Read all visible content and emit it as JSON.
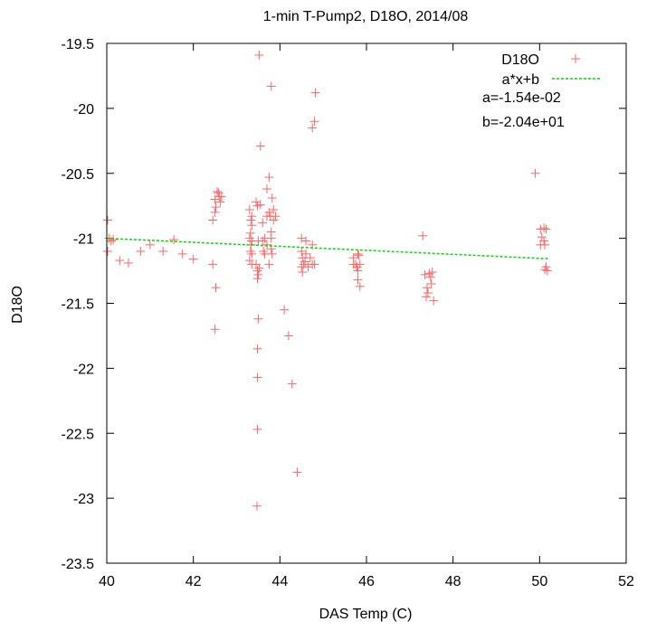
{
  "chart_data": {
    "type": "scatter",
    "title": "1-min T-Pump2, D18O, 2014/08",
    "xlabel": "DAS Temp (C)",
    "ylabel": "D18O",
    "xlim": [
      40,
      52
    ],
    "ylim": [
      -23.5,
      -19.5
    ],
    "xticks": [
      "40",
      "42",
      "44",
      "46",
      "48",
      "50",
      "52"
    ],
    "yticks": [
      "-19.5",
      "-20",
      "-20.5",
      "-21",
      "-21.5",
      "-22",
      "-22.5",
      "-23",
      "-23.5"
    ],
    "grid": false,
    "legend_position": "top-right",
    "colors": {
      "points": "#ff6666",
      "fit": "#00dd00"
    },
    "series": [
      {
        "name": "D18O",
        "marker": "plus",
        "points": [
          [
            40.02,
            -20.86
          ],
          [
            40.05,
            -21.0
          ],
          [
            40.1,
            -21.02
          ],
          [
            40.15,
            -21.01
          ],
          [
            40.02,
            -21.1
          ],
          [
            40.3,
            -21.17
          ],
          [
            40.5,
            -21.19
          ],
          [
            40.78,
            -21.1
          ],
          [
            41.0,
            -21.05
          ],
          [
            41.3,
            -21.1
          ],
          [
            41.55,
            -21.01
          ],
          [
            41.75,
            -21.12
          ],
          [
            42.0,
            -21.16
          ],
          [
            42.5,
            -20.7
          ],
          [
            42.52,
            -20.76
          ],
          [
            42.45,
            -20.86
          ],
          [
            42.55,
            -20.64
          ],
          [
            42.6,
            -20.68
          ],
          [
            42.62,
            -20.72
          ],
          [
            42.65,
            -20.68
          ],
          [
            42.5,
            -20.8
          ],
          [
            42.58,
            -20.65
          ],
          [
            42.45,
            -21.2
          ],
          [
            42.52,
            -21.38
          ],
          [
            42.5,
            -21.7
          ],
          [
            43.3,
            -21.0
          ],
          [
            43.33,
            -21.05
          ],
          [
            43.35,
            -21.12
          ],
          [
            43.32,
            -21.1
          ],
          [
            43.3,
            -20.78
          ],
          [
            43.35,
            -20.83
          ],
          [
            43.33,
            -20.86
          ],
          [
            43.35,
            -20.9
          ],
          [
            43.32,
            -20.96
          ],
          [
            43.35,
            -21.02
          ],
          [
            43.3,
            -21.17
          ],
          [
            43.35,
            -21.2
          ],
          [
            43.45,
            -20.72
          ],
          [
            43.48,
            -20.75
          ],
          [
            43.5,
            -21.02
          ],
          [
            43.45,
            -21.2
          ],
          [
            43.48,
            -21.25
          ],
          [
            43.5,
            -21.28
          ],
          [
            43.52,
            -21.23
          ],
          [
            43.48,
            -21.31
          ],
          [
            43.55,
            -20.74
          ],
          [
            43.6,
            -20.88
          ],
          [
            43.65,
            -21.0
          ],
          [
            43.6,
            -21.02
          ],
          [
            43.62,
            -21.1
          ],
          [
            43.65,
            -21.12
          ],
          [
            43.7,
            -20.83
          ],
          [
            43.7,
            -21.05
          ],
          [
            43.75,
            -20.53
          ],
          [
            43.75,
            -20.8
          ],
          [
            43.78,
            -20.83
          ],
          [
            43.8,
            -20.95
          ],
          [
            43.82,
            -20.69
          ],
          [
            43.85,
            -20.78
          ],
          [
            43.85,
            -20.86
          ],
          [
            43.8,
            -21.0
          ],
          [
            43.8,
            -21.08
          ],
          [
            43.82,
            -21.12
          ],
          [
            43.9,
            -20.83
          ],
          [
            43.75,
            -21.2
          ],
          [
            43.52,
            -19.59
          ],
          [
            43.8,
            -19.83
          ],
          [
            43.55,
            -20.29
          ],
          [
            43.7,
            -20.62
          ],
          [
            43.5,
            -21.62
          ],
          [
            43.48,
            -21.85
          ],
          [
            43.48,
            -22.07
          ],
          [
            43.48,
            -22.47
          ],
          [
            43.47,
            -23.06
          ],
          [
            44.1,
            -21.55
          ],
          [
            44.2,
            -21.75
          ],
          [
            44.28,
            -22.12
          ],
          [
            44.4,
            -22.8
          ],
          [
            44.5,
            -21.1
          ],
          [
            44.52,
            -21.15
          ],
          [
            44.55,
            -21.2
          ],
          [
            44.58,
            -21.18
          ],
          [
            44.6,
            -21.12
          ],
          [
            44.5,
            -21.22
          ],
          [
            44.52,
            -21.26
          ],
          [
            44.6,
            -21.02
          ],
          [
            44.65,
            -21.22
          ],
          [
            44.7,
            -21.15
          ],
          [
            44.75,
            -21.2
          ],
          [
            44.75,
            -21.05
          ],
          [
            44.8,
            -21.2
          ],
          [
            44.5,
            -21.0
          ],
          [
            44.75,
            -20.15
          ],
          [
            44.8,
            -20.1
          ],
          [
            44.82,
            -19.88
          ],
          [
            45.7,
            -21.15
          ],
          [
            45.75,
            -21.2
          ],
          [
            45.78,
            -21.22
          ],
          [
            45.8,
            -21.25
          ],
          [
            45.82,
            -21.13
          ],
          [
            45.7,
            -21.2
          ],
          [
            45.85,
            -21.2
          ],
          [
            45.8,
            -21.32
          ],
          [
            45.85,
            -21.37
          ],
          [
            45.8,
            -21.12
          ],
          [
            47.3,
            -20.98
          ],
          [
            47.35,
            -21.28
          ],
          [
            47.4,
            -21.38
          ],
          [
            47.42,
            -21.42
          ],
          [
            47.38,
            -21.45
          ],
          [
            47.45,
            -21.27
          ],
          [
            47.48,
            -21.3
          ],
          [
            47.5,
            -21.35
          ],
          [
            47.52,
            -21.26
          ],
          [
            47.55,
            -21.48
          ],
          [
            49.9,
            -20.5
          ],
          [
            50.02,
            -20.93
          ],
          [
            50.1,
            -20.92
          ],
          [
            50.05,
            -20.99
          ],
          [
            50.1,
            -21.02
          ],
          [
            50.12,
            -21.05
          ],
          [
            50.02,
            -21.05
          ],
          [
            50.15,
            -20.93
          ],
          [
            50.15,
            -21.22
          ],
          [
            50.18,
            -21.25
          ],
          [
            50.12,
            -21.24
          ]
        ]
      },
      {
        "name": "a*x+b",
        "style": "dashed-line",
        "slope": -0.0154,
        "intercept": -20.4,
        "x_range": [
          40,
          50.2
        ]
      }
    ],
    "annotations": [
      "a=-1.54e-02",
      "b=-2.04e+01"
    ]
  }
}
